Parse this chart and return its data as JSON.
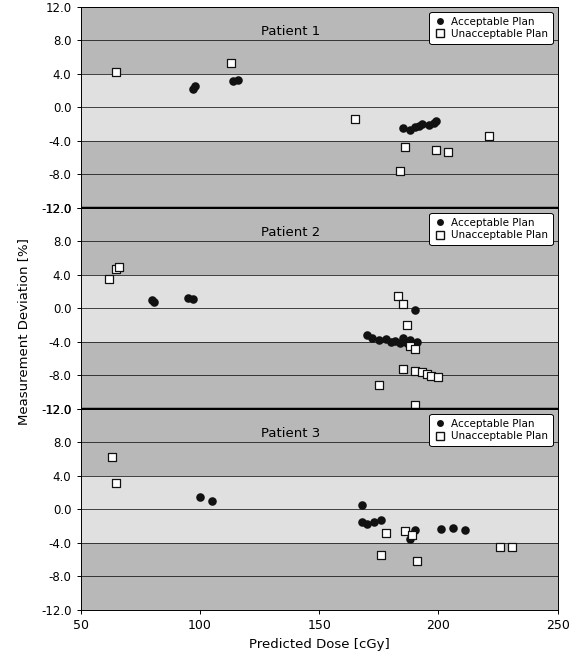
{
  "panels": [
    {
      "label": "Patient 1",
      "acceptable": [
        [
          97,
          2.2
        ],
        [
          98,
          2.5
        ],
        [
          114,
          3.1
        ],
        [
          116,
          3.3
        ],
        [
          185,
          -2.5
        ],
        [
          188,
          -2.7
        ],
        [
          190,
          -2.4
        ],
        [
          192,
          -2.2
        ],
        [
          193,
          -2.0
        ],
        [
          196,
          -2.1
        ],
        [
          198,
          -1.9
        ],
        [
          199,
          -1.6
        ]
      ],
      "unacceptable": [
        [
          65,
          4.2
        ],
        [
          113,
          5.3
        ],
        [
          165,
          -1.4
        ],
        [
          186,
          -4.8
        ],
        [
          199,
          -5.1
        ],
        [
          204,
          -5.3
        ],
        [
          184,
          -7.6
        ],
        [
          221,
          -3.4
        ]
      ]
    },
    {
      "label": "Patient 2",
      "acceptable": [
        [
          80,
          1.0
        ],
        [
          81,
          0.8
        ],
        [
          95,
          1.2
        ],
        [
          97,
          1.1
        ],
        [
          170,
          -3.2
        ],
        [
          172,
          -3.5
        ],
        [
          175,
          -3.8
        ],
        [
          178,
          -3.7
        ],
        [
          180,
          -4.0
        ],
        [
          182,
          -3.9
        ],
        [
          184,
          -4.1
        ],
        [
          185,
          -3.5
        ],
        [
          187,
          -4.2
        ],
        [
          188,
          -3.8
        ],
        [
          189,
          -4.3
        ],
        [
          190,
          -0.2
        ],
        [
          191,
          -4.0
        ]
      ],
      "unacceptable": [
        [
          62,
          3.5
        ],
        [
          65,
          4.7
        ],
        [
          66,
          4.9
        ],
        [
          183,
          1.5
        ],
        [
          185,
          0.5
        ],
        [
          187,
          -2.0
        ],
        [
          188,
          -4.5
        ],
        [
          190,
          -4.8
        ],
        [
          185,
          -7.2
        ],
        [
          190,
          -7.5
        ],
        [
          193,
          -7.6
        ],
        [
          195,
          -7.9
        ],
        [
          197,
          -8.1
        ],
        [
          200,
          -8.2
        ],
        [
          175,
          -9.2
        ],
        [
          190,
          -11.5
        ]
      ]
    },
    {
      "label": "Patient 3",
      "acceptable": [
        [
          100,
          1.5
        ],
        [
          105,
          1.0
        ],
        [
          168,
          -1.5
        ],
        [
          170,
          -1.8
        ],
        [
          173,
          -1.5
        ],
        [
          176,
          -1.3
        ],
        [
          188,
          -3.5
        ],
        [
          190,
          -2.5
        ],
        [
          201,
          -2.3
        ],
        [
          206,
          -2.2
        ],
        [
          211,
          -2.4
        ],
        [
          168,
          0.5
        ]
      ],
      "unacceptable": [
        [
          63,
          6.3
        ],
        [
          65,
          3.2
        ],
        [
          178,
          -2.8
        ],
        [
          186,
          -2.6
        ],
        [
          189,
          -3.0
        ],
        [
          176,
          -5.5
        ],
        [
          191,
          -6.2
        ],
        [
          226,
          -4.5
        ],
        [
          231,
          -4.5
        ]
      ]
    }
  ],
  "xlim": [
    50,
    250
  ],
  "xticks": [
    50,
    100,
    150,
    200,
    250
  ],
  "ylim": [
    -12.0,
    12.0
  ],
  "yticks": [
    -12.0,
    -8.0,
    -4.0,
    0.0,
    4.0,
    8.0,
    12.0
  ],
  "xlabel": "Predicted Dose [cGy]",
  "ylabel": "Measurement Deviation [%]",
  "bg_color_outer": "#b8b8b8",
  "bg_color_inner": "#e0e0e0",
  "divider_color": "#000000",
  "acceptable_color": "#111111",
  "unacceptable_edgecolor": "#111111"
}
